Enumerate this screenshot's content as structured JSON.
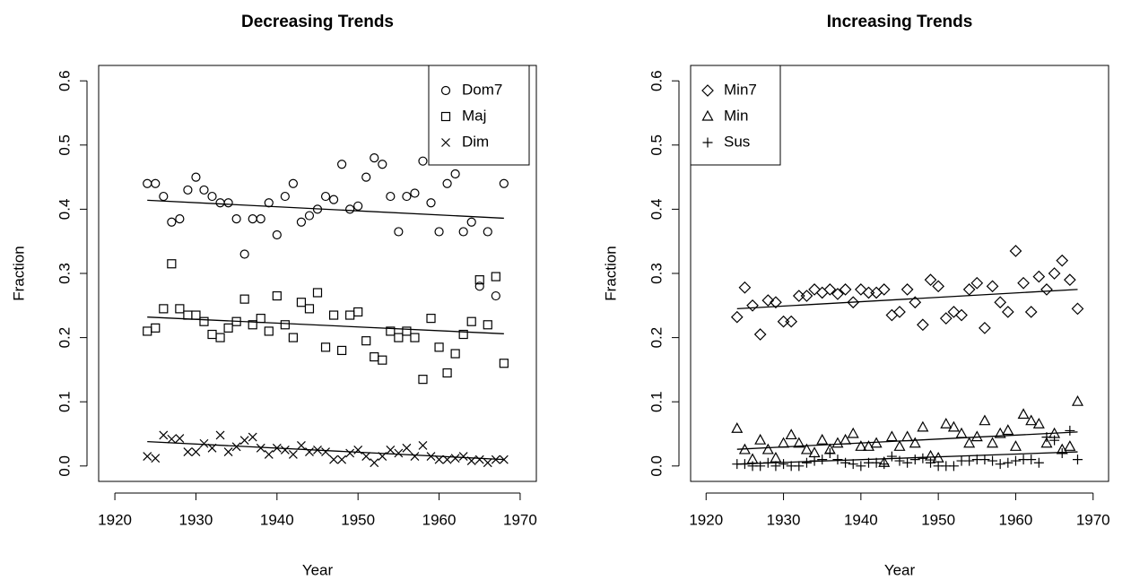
{
  "chart_data": [
    {
      "type": "scatter",
      "title": "Decreasing Trends",
      "xlabel": "Year",
      "ylabel": "Fraction",
      "x": [
        1924,
        1925,
        1926,
        1927,
        1928,
        1929,
        1930,
        1931,
        1932,
        1933,
        1934,
        1935,
        1936,
        1937,
        1938,
        1939,
        1940,
        1941,
        1942,
        1943,
        1944,
        1945,
        1946,
        1947,
        1948,
        1949,
        1950,
        1951,
        1952,
        1953,
        1954,
        1955,
        1956,
        1957,
        1958,
        1959,
        1960,
        1961,
        1962,
        1963,
        1964,
        1965,
        1966,
        1967,
        1968
      ],
      "series": [
        {
          "name": "Dom7",
          "marker": "circle",
          "color": "#000000",
          "values": [
            0.44,
            0.44,
            0.42,
            0.38,
            0.385,
            0.43,
            0.45,
            0.43,
            0.42,
            0.41,
            0.41,
            0.385,
            0.33,
            0.385,
            0.385,
            0.41,
            0.36,
            0.42,
            0.44,
            0.38,
            0.39,
            0.4,
            0.42,
            0.415,
            0.47,
            0.4,
            0.405,
            0.45,
            0.48,
            0.47,
            0.42,
            0.365,
            0.42,
            0.425,
            0.475,
            0.41,
            0.365,
            0.44,
            0.455,
            0.365,
            0.38,
            0.28,
            0.365,
            0.265,
            0.44
          ],
          "trend": [
            0.414,
            0.386
          ]
        },
        {
          "name": "Maj",
          "marker": "square",
          "color": "#000000",
          "values": [
            0.21,
            0.215,
            0.245,
            0.315,
            0.245,
            0.235,
            0.235,
            0.225,
            0.205,
            0.2,
            0.215,
            0.225,
            0.26,
            0.22,
            0.23,
            0.21,
            0.265,
            0.22,
            0.2,
            0.255,
            0.245,
            0.27,
            0.185,
            0.235,
            0.18,
            0.235,
            0.24,
            0.195,
            0.17,
            0.165,
            0.21,
            0.2,
            0.21,
            0.2,
            0.135,
            0.23,
            0.185,
            0.145,
            0.175,
            0.205,
            0.225,
            0.29,
            0.22,
            0.295,
            0.16
          ],
          "trend": [
            0.232,
            0.206
          ]
        },
        {
          "name": "Dim",
          "marker": "x",
          "color": "#000000",
          "values": [
            0.015,
            0.012,
            0.048,
            0.042,
            0.043,
            0.022,
            0.022,
            0.035,
            0.028,
            0.048,
            0.022,
            0.03,
            0.04,
            0.045,
            0.028,
            0.018,
            0.028,
            0.025,
            0.018,
            0.032,
            0.022,
            0.025,
            0.022,
            0.01,
            0.01,
            0.02,
            0.025,
            0.015,
            0.005,
            0.015,
            0.025,
            0.02,
            0.028,
            0.015,
            0.032,
            0.015,
            0.01,
            0.01,
            0.012,
            0.015,
            0.008,
            0.01,
            0.005,
            0.01,
            0.01
          ],
          "trend": [
            0.038,
            0.01
          ]
        }
      ],
      "trend_x": [
        1924,
        1968
      ],
      "xlim": [
        1918,
        1972
      ],
      "ylim": [
        -0.024,
        0.624
      ],
      "xticks": [
        1920,
        1930,
        1940,
        1950,
        1960,
        1970
      ],
      "yticks": [
        {
          "value": 0,
          "label": "0.0"
        },
        {
          "value": 0.1,
          "label": "0.1"
        },
        {
          "value": 0.2,
          "label": "0.2"
        },
        {
          "value": 0.3,
          "label": "0.3"
        },
        {
          "value": 0.4,
          "label": "0.4"
        },
        {
          "value": 0.5,
          "label": "0.5"
        },
        {
          "value": 0.6,
          "label": "0.6"
        }
      ],
      "legend": "topright"
    },
    {
      "type": "scatter",
      "title": "Increasing Trends",
      "xlabel": "Year",
      "ylabel": "Fraction",
      "x": [
        1924,
        1925,
        1926,
        1927,
        1928,
        1929,
        1930,
        1931,
        1932,
        1933,
        1934,
        1935,
        1936,
        1937,
        1938,
        1939,
        1940,
        1941,
        1942,
        1943,
        1944,
        1945,
        1946,
        1947,
        1948,
        1949,
        1950,
        1951,
        1952,
        1953,
        1954,
        1955,
        1956,
        1957,
        1958,
        1959,
        1960,
        1961,
        1962,
        1963,
        1964,
        1965,
        1966,
        1967,
        1968
      ],
      "series": [
        {
          "name": "Min7",
          "marker": "diamond",
          "color": "#000000",
          "values": [
            0.232,
            0.278,
            0.25,
            0.205,
            0.258,
            0.255,
            0.225,
            0.225,
            0.265,
            0.265,
            0.275,
            0.27,
            0.275,
            0.268,
            0.275,
            0.255,
            0.275,
            0.27,
            0.27,
            0.275,
            0.235,
            0.24,
            0.275,
            0.255,
            0.22,
            0.29,
            0.28,
            0.23,
            0.24,
            0.235,
            0.275,
            0.285,
            0.215,
            0.28,
            0.255,
            0.24,
            0.335,
            0.285,
            0.24,
            0.295,
            0.275,
            0.3,
            0.32,
            0.29,
            0.245
          ],
          "trend": [
            0.245,
            0.275
          ]
        },
        {
          "name": "Min",
          "marker": "triangle",
          "color": "#000000",
          "values": [
            0.058,
            0.025,
            0.01,
            0.04,
            0.025,
            0.012,
            0.035,
            0.048,
            0.035,
            0.025,
            0.02,
            0.04,
            0.025,
            0.035,
            0.04,
            0.05,
            0.03,
            0.03,
            0.035,
            0.005,
            0.045,
            0.03,
            0.045,
            0.035,
            0.06,
            0.015,
            0.012,
            0.065,
            0.06,
            0.05,
            0.035,
            0.045,
            0.07,
            0.035,
            0.05,
            0.055,
            0.03,
            0.08,
            0.07,
            0.065,
            0.035,
            0.05,
            0.025,
            0.03,
            0.1
          ],
          "trend": [
            0.026,
            0.053
          ]
        },
        {
          "name": "Sus",
          "marker": "plus",
          "color": "#000000",
          "values": [
            0.003,
            0.003,
            0.0,
            0.0,
            0.005,
            0.0,
            0.003,
            0.0,
            0.0,
            0.005,
            0.008,
            0.01,
            0.02,
            0.01,
            0.005,
            0.003,
            0.0,
            0.005,
            0.005,
            0.003,
            0.015,
            0.008,
            0.005,
            0.01,
            0.012,
            0.005,
            0.0,
            0.0,
            0.0,
            0.008,
            0.008,
            0.01,
            0.01,
            0.008,
            0.003,
            0.005,
            0.008,
            0.01,
            0.01,
            0.005,
            0.045,
            0.04,
            0.02,
            0.055,
            0.01
          ],
          "trend": [
            0.003,
            0.022
          ]
        }
      ],
      "trend_x": [
        1924,
        1968
      ],
      "xlim": [
        1918,
        1972
      ],
      "ylim": [
        -0.024,
        0.624
      ],
      "xticks": [
        1920,
        1930,
        1940,
        1950,
        1960,
        1970
      ],
      "yticks": [
        {
          "value": 0,
          "label": "0.0"
        },
        {
          "value": 0.1,
          "label": "0.1"
        },
        {
          "value": 0.2,
          "label": "0.2"
        },
        {
          "value": 0.3,
          "label": "0.3"
        },
        {
          "value": 0.4,
          "label": "0.4"
        },
        {
          "value": 0.5,
          "label": "0.5"
        },
        {
          "value": 0.6,
          "label": "0.6"
        }
      ],
      "legend": "topleft"
    }
  ]
}
